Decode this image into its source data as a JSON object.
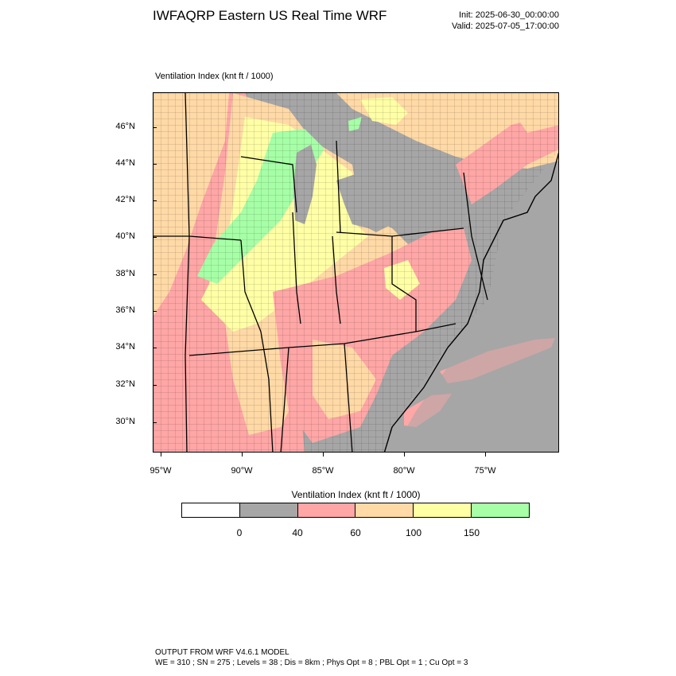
{
  "header": {
    "title": "IWFAQRP Eastern US Real Time WRF",
    "init": "Init: 2025-06-30_00:00:00",
    "valid": "Valid: 2025-07-05_17:00:00"
  },
  "map": {
    "field_label": "Ventilation Index   (knt ft / 1000)",
    "lat_labels": [
      "46°N",
      "44°N",
      "42°N",
      "40°N",
      "38°N",
      "36°N",
      "34°N",
      "32°N",
      "30°N"
    ],
    "lon_labels": [
      "95°W",
      "90°W",
      "85°W",
      "80°W",
      "75°W"
    ]
  },
  "legend": {
    "title": "Ventilation Index  (knt ft / 1000)",
    "colors": [
      "#ffffff",
      "#a6a6a6",
      "#ffa6a6",
      "#ffd9a6",
      "#ffffa6",
      "#a6ffa6"
    ],
    "tick_labels": [
      "0",
      "40",
      "60",
      "100",
      "150"
    ]
  },
  "footer": {
    "line1": "OUTPUT FROM WRF V4.6.1 MODEL",
    "line2": "WE = 310 ; SN = 275 ; Levels = 38 ; Dis = 8km ; Phys Opt = 8 ; PBL Opt = 1 ; Cu Opt = 3"
  }
}
